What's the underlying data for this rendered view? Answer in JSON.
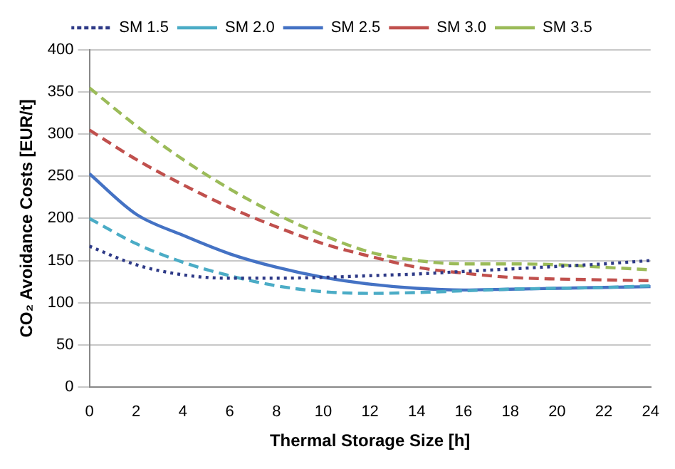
{
  "chart_data": {
    "type": "line",
    "xlabel": "Thermal Storage Size [h]",
    "ylabel": "CO₂ Avoidance Costs [EUR/t]",
    "x": [
      0,
      2,
      4,
      6,
      8,
      10,
      12,
      14,
      16,
      18,
      20,
      22,
      24
    ],
    "xlim": [
      0,
      24
    ],
    "xticks": [
      0,
      2,
      4,
      6,
      8,
      10,
      12,
      14,
      16,
      18,
      20,
      22,
      24
    ],
    "ylim": [
      0,
      400
    ],
    "yticks": [
      0,
      50,
      100,
      150,
      200,
      250,
      300,
      350,
      400
    ],
    "grid": "y",
    "legend": "top",
    "marker": "none",
    "series": [
      {
        "name": "SM 1.5",
        "color": "#2e3a87",
        "line_style": "dotted",
        "values": [
          167,
          145,
          133,
          129,
          129,
          130,
          132,
          134,
          137,
          140,
          143,
          146,
          150
        ]
      },
      {
        "name": "SM 2.0",
        "color": "#4bacc6",
        "line_style": "dashed",
        "values": [
          200,
          170,
          148,
          132,
          120,
          113,
          111,
          112,
          114,
          116,
          117,
          118,
          120
        ]
      },
      {
        "name": "SM 2.5",
        "color": "#4472c4",
        "line_style": "solid",
        "values": [
          253,
          205,
          180,
          158,
          142,
          130,
          122,
          117,
          115,
          116,
          117,
          118,
          119
        ]
      },
      {
        "name": "SM 3.0",
        "color": "#c0504d",
        "line_style": "dashed",
        "values": [
          305,
          270,
          240,
          213,
          190,
          170,
          155,
          142,
          135,
          130,
          128,
          127,
          126
        ]
      },
      {
        "name": "SM 3.5",
        "color": "#9bbb59",
        "line_style": "dashed",
        "values": [
          355,
          310,
          270,
          235,
          205,
          180,
          160,
          150,
          146,
          146,
          145,
          142,
          139
        ]
      }
    ]
  }
}
